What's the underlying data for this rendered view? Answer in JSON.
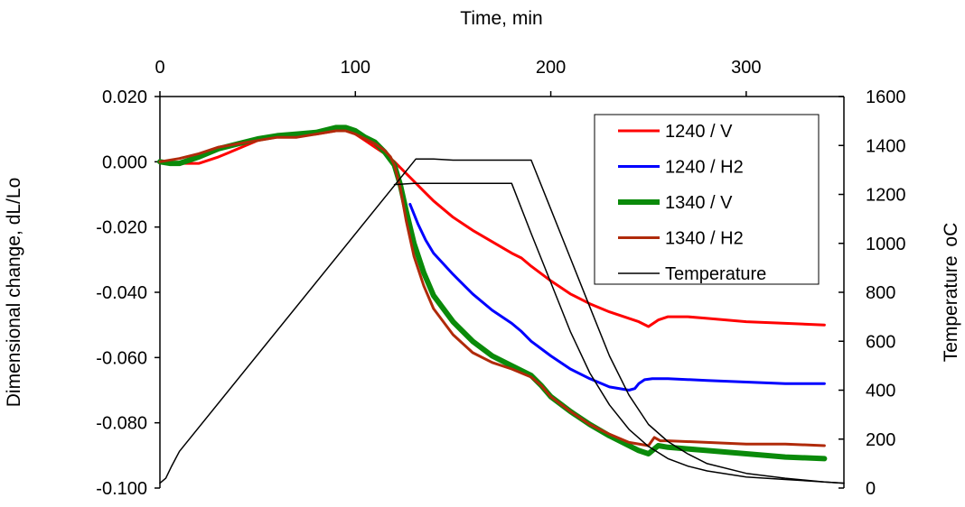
{
  "chart_data": {
    "type": "line",
    "xlabel": "Time, min",
    "ylabel_left": "Dimensional change, dL/Lo",
    "ylabel_right": "Temperature",
    "ylabel_right_unit": "oC",
    "xlim": [
      0,
      350
    ],
    "ylim_left": [
      -0.1,
      0.02
    ],
    "ylim_right": [
      0,
      1600
    ],
    "x_ticks": [
      0,
      100,
      200,
      300
    ],
    "x_tick_labels": [
      "0",
      "100",
      "200",
      "300"
    ],
    "y_left_ticks": [
      0.02,
      0.0,
      -0.02,
      -0.04,
      -0.06,
      -0.08,
      -0.1
    ],
    "y_left_tick_labels": [
      "0.020",
      "0.000",
      "-0.020",
      "-0.040",
      "-0.060",
      "-0.080",
      "-0.100"
    ],
    "y_right_ticks": [
      1600,
      1400,
      1200,
      1000,
      800,
      600,
      400,
      200,
      0
    ],
    "y_right_tick_labels": [
      "1600",
      "1400",
      "1200",
      "1000",
      "800",
      "600",
      "400",
      "200",
      "0"
    ],
    "legend_position": "top-right",
    "grid": false,
    "series": [
      {
        "name": "1240 / V",
        "color": "#ff0000",
        "width": 3,
        "axis": "left",
        "x": [
          0,
          10,
          20,
          30,
          40,
          50,
          60,
          70,
          80,
          90,
          95,
          100,
          105,
          110,
          115,
          120,
          125,
          130,
          135,
          140,
          150,
          160,
          170,
          180,
          185,
          190,
          200,
          210,
          220,
          230,
          240,
          245,
          250,
          255,
          260,
          270,
          280,
          300,
          320,
          340
        ],
        "y": [
          0.0,
          -0.0005,
          -0.0005,
          0.0015,
          0.004,
          0.0065,
          0.008,
          0.008,
          0.0085,
          0.0095,
          0.0095,
          0.0085,
          0.0065,
          0.0045,
          0.0025,
          0.0,
          -0.003,
          -0.006,
          -0.009,
          -0.012,
          -0.017,
          -0.021,
          -0.0245,
          -0.028,
          -0.0295,
          -0.032,
          -0.0365,
          -0.0405,
          -0.0435,
          -0.046,
          -0.048,
          -0.049,
          -0.0505,
          -0.0485,
          -0.0475,
          -0.0475,
          -0.048,
          -0.049,
          -0.0495,
          -0.05
        ]
      },
      {
        "name": "1240 / H2",
        "color": "#0000ff",
        "width": 3,
        "axis": "left",
        "x": [
          128,
          132,
          136,
          140,
          150,
          160,
          170,
          180,
          185,
          190,
          200,
          210,
          220,
          230,
          240,
          243,
          245,
          248,
          252,
          260,
          280,
          300,
          320,
          340
        ],
        "y": [
          -0.013,
          -0.019,
          -0.024,
          -0.028,
          -0.0345,
          -0.0405,
          -0.0455,
          -0.0495,
          -0.052,
          -0.055,
          -0.0595,
          -0.0635,
          -0.0665,
          -0.069,
          -0.07,
          -0.0695,
          -0.068,
          -0.0668,
          -0.0665,
          -0.0665,
          -0.067,
          -0.0675,
          -0.068,
          -0.068
        ]
      },
      {
        "name": "1340 / V",
        "color": "#0a8a0a",
        "width": 6,
        "axis": "left",
        "x": [
          0,
          5,
          10,
          20,
          30,
          40,
          50,
          60,
          70,
          80,
          90,
          95,
          100,
          105,
          110,
          115,
          120,
          123,
          126,
          130,
          135,
          140,
          150,
          160,
          170,
          180,
          190,
          195,
          200,
          210,
          220,
          230,
          240,
          245,
          250,
          255,
          260,
          280,
          300,
          320,
          340
        ],
        "y": [
          0.0,
          -0.0005,
          -0.0005,
          0.0015,
          0.004,
          0.0055,
          0.007,
          0.008,
          0.0085,
          0.009,
          0.0105,
          0.0105,
          0.0095,
          0.0075,
          0.006,
          0.003,
          -0.001,
          -0.007,
          -0.015,
          -0.025,
          -0.034,
          -0.041,
          -0.049,
          -0.055,
          -0.0595,
          -0.0625,
          -0.0655,
          -0.0685,
          -0.072,
          -0.0765,
          -0.0805,
          -0.084,
          -0.087,
          -0.0885,
          -0.0895,
          -0.087,
          -0.0875,
          -0.0885,
          -0.0895,
          -0.0905,
          -0.091
        ]
      },
      {
        "name": "1340 / H2",
        "color": "#b02a0a",
        "width": 3,
        "axis": "left",
        "x": [
          0,
          10,
          20,
          30,
          40,
          50,
          60,
          70,
          80,
          90,
          95,
          100,
          105,
          110,
          115,
          118,
          120,
          123,
          126,
          130,
          135,
          140,
          150,
          160,
          170,
          180,
          190,
          195,
          200,
          210,
          220,
          230,
          240,
          250,
          253,
          256,
          260,
          280,
          300,
          320,
          340
        ],
        "y": [
          0.0,
          0.001,
          0.0025,
          0.0045,
          0.0055,
          0.0065,
          0.0075,
          0.0075,
          0.0085,
          0.0095,
          0.0095,
          0.0085,
          0.007,
          0.0055,
          0.0035,
          0.0015,
          -0.001,
          -0.008,
          -0.018,
          -0.029,
          -0.038,
          -0.045,
          -0.053,
          -0.0585,
          -0.0615,
          -0.0635,
          -0.066,
          -0.0685,
          -0.072,
          -0.0765,
          -0.0805,
          -0.0835,
          -0.086,
          -0.087,
          -0.0845,
          -0.0855,
          -0.0855,
          -0.086,
          -0.0865,
          -0.0865,
          -0.087
        ]
      },
      {
        "name": "Temperature",
        "color": "#000000",
        "width": 1.5,
        "axis": "right",
        "x": [
          0,
          3,
          6,
          10,
          131,
          140,
          150,
          160,
          170,
          180,
          190,
          200,
          210,
          220,
          230,
          240,
          250,
          260,
          270,
          280,
          300,
          320,
          340,
          350
        ],
        "y": [
          20,
          40,
          90,
          150,
          1345,
          1345,
          1340,
          1340,
          1340,
          1340,
          1340,
          1140,
          940,
          740,
          540,
          380,
          260,
          190,
          140,
          100,
          60,
          40,
          25,
          20
        ]
      },
      {
        "name": "",
        "color": "#000000",
        "width": 1.5,
        "axis": "right",
        "x": [
          120,
          130,
          140,
          150,
          160,
          170,
          180,
          190,
          200,
          210,
          220,
          230,
          240,
          250,
          260,
          270,
          280,
          300,
          320,
          340,
          350
        ],
        "y": [
          1240,
          1245,
          1245,
          1245,
          1245,
          1245,
          1245,
          1040,
          840,
          640,
          470,
          340,
          240,
          170,
          120,
          90,
          70,
          45,
          35,
          25,
          20
        ]
      }
    ]
  }
}
